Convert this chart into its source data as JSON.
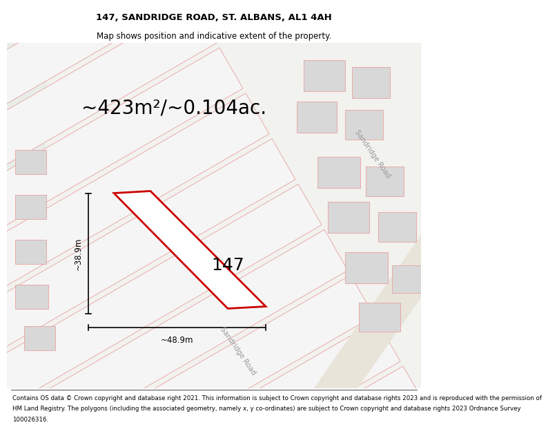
{
  "title": "147, SANDRIDGE ROAD, ST. ALBANS, AL1 4AH",
  "subtitle": "Map shows position and indicative extent of the property.",
  "area_text": "~423m²/~0.104ac.",
  "width_label": "~48.9m",
  "height_label": "~38.9m",
  "number_label": "147",
  "footer_lines": [
    "Contains OS data © Crown copyright and database right 2021. This information is subject to Crown copyright and database rights 2023 and is reproduced with the permission of",
    "HM Land Registry. The polygons (including the associated geometry, namely x, y co-ordinates) are subject to Crown copyright and database rights 2023 Ordnance Survey",
    "100026316."
  ],
  "map_bg": "#f2f2ee",
  "green_color": "#e8ede8",
  "plot_color": "#cc0000",
  "strip_face": "#f5f5f5",
  "strip_edge": "#e8a0a0",
  "building_face": "#d8d8d8",
  "building_edge": "#e8a0a0",
  "road_face": "#e8e4da",
  "title_fontsize": 9.5,
  "subtitle_fontsize": 8.5,
  "area_fontsize": 20,
  "label_fontsize": 8.5,
  "number_fontsize": 18,
  "footer_fontsize": 6.2
}
